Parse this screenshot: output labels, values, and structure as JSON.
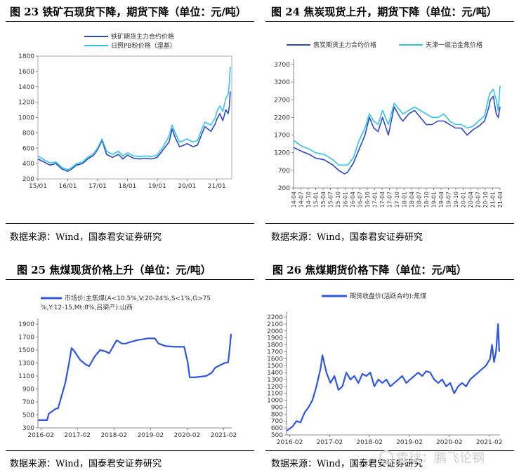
{
  "watermark": "雪球：鹏飞论钢",
  "colors": {
    "dark_blue": "#2a46c9",
    "light_blue": "#2ec4ec",
    "line_blue": "#2d57e3"
  },
  "panels": [
    {
      "title": "图 23  铁矿石现货下降，期货下降（单位：元/吨）",
      "source": "数据来源：Wind，国泰君安证券研究"
    },
    {
      "title": "图 24  焦炭现货上升，期货下降（单位：元/吨）",
      "source": "数据来源：Wind，国泰君安证券研究"
    },
    {
      "title": "图 25  焦煤现货价格上升（单位：元/吨）",
      "source": "数据来源：Wind，国泰君安证券研究"
    },
    {
      "title": "图 26  焦煤期货价格下降（单位：元/吨）",
      "source": "数据来源：Wind，国泰君安证券研究"
    }
  ],
  "chart_data": [
    {
      "type": "line",
      "title": "图 23  铁矿石现货下降，期货下降（单位：元/吨）",
      "ylim": [
        200,
        1800
      ],
      "yticks": [
        "1800",
        "1600",
        "1400",
        "1200",
        "1000",
        "800",
        "600",
        "400",
        "200"
      ],
      "xlim": [
        2015.0,
        2021.5
      ],
      "xticks": [
        "15/01",
        "16/01",
        "17/01",
        "18/01",
        "19/01",
        "20/01",
        "21/01"
      ],
      "legend_position": "top-left",
      "grid": false,
      "series": [
        {
          "name": "铁矿期货主力合约价格",
          "color": "#2a46c9",
          "x": [
            2015.0,
            2015.2,
            2015.4,
            2015.6,
            2015.8,
            2016.0,
            2016.1,
            2016.3,
            2016.5,
            2016.7,
            2016.85,
            2017.0,
            2017.15,
            2017.3,
            2017.5,
            2017.7,
            2017.85,
            2018.0,
            2018.2,
            2018.4,
            2018.6,
            2018.8,
            2019.0,
            2019.2,
            2019.4,
            2019.5,
            2019.6,
            2019.75,
            2019.9,
            2020.0,
            2020.2,
            2020.35,
            2020.5,
            2020.6,
            2020.8,
            2020.95,
            2021.0,
            2021.1,
            2021.2,
            2021.3,
            2021.38,
            2021.42,
            2021.45
          ],
          "y": [
            460,
            420,
            380,
            400,
            330,
            300,
            320,
            380,
            400,
            470,
            500,
            580,
            700,
            520,
            480,
            520,
            460,
            510,
            470,
            460,
            470,
            460,
            480,
            580,
            680,
            850,
            740,
            620,
            640,
            660,
            620,
            640,
            790,
            880,
            820,
            920,
            980,
            1050,
            960,
            1100,
            1050,
            1150,
            1340
          ]
        },
        {
          "name": "日照PB粉价格（湿基）",
          "color": "#2ec4ec",
          "x": [
            2015.0,
            2015.2,
            2015.4,
            2015.6,
            2015.8,
            2016.0,
            2016.1,
            2016.3,
            2016.5,
            2016.7,
            2016.85,
            2017.0,
            2017.15,
            2017.3,
            2017.5,
            2017.7,
            2017.85,
            2018.0,
            2018.2,
            2018.4,
            2018.6,
            2018.8,
            2019.0,
            2019.2,
            2019.4,
            2019.5,
            2019.6,
            2019.75,
            2019.9,
            2020.0,
            2020.2,
            2020.35,
            2020.5,
            2020.6,
            2020.8,
            2020.95,
            2021.0,
            2021.1,
            2021.2,
            2021.3,
            2021.38,
            2021.42,
            2021.45
          ],
          "y": [
            500,
            450,
            410,
            420,
            350,
            320,
            340,
            400,
            420,
            490,
            520,
            600,
            720,
            560,
            520,
            560,
            500,
            540,
            500,
            490,
            500,
            490,
            510,
            620,
            760,
            900,
            800,
            680,
            700,
            720,
            680,
            700,
            850,
            940,
            900,
            1000,
            1080,
            1150,
            1080,
            1250,
            1300,
            1450,
            1660
          ]
        }
      ]
    },
    {
      "type": "line",
      "title": "图 24  焦炭现货上升，期货下降（单位：元/吨）",
      "ylim": [
        200,
        3700
      ],
      "yticks": [
        "3700",
        "3200",
        "2700",
        "2200",
        "1700",
        "1200",
        "700",
        "200"
      ],
      "xlim": [
        2014.25,
        2021.33
      ],
      "xticks": [
        "14-04",
        "14-07",
        "14-10",
        "15-01",
        "15-04",
        "15-07",
        "15-10",
        "16-01",
        "16-04",
        "16-07",
        "16-10",
        "17-01",
        "17-04",
        "17-07",
        "17-10",
        "18-01",
        "18-04",
        "18-07",
        "18-10",
        "19-01",
        "19-04",
        "19-07",
        "19-10",
        "20-01",
        "20-04",
        "20-07",
        "20-10",
        "21-01",
        "21-04"
      ],
      "legend_position": "top",
      "grid": false,
      "series": [
        {
          "name": "焦炭期货主力合约价格",
          "color": "#2a46c9",
          "x": [
            2014.25,
            2014.5,
            2014.8,
            2015.0,
            2015.3,
            2015.6,
            2015.8,
            2016.0,
            2016.1,
            2016.3,
            2016.5,
            2016.7,
            2016.85,
            2017.0,
            2017.15,
            2017.3,
            2017.5,
            2017.7,
            2017.9,
            2018.0,
            2018.2,
            2018.4,
            2018.6,
            2018.8,
            2019.0,
            2019.2,
            2019.4,
            2019.6,
            2019.8,
            2020.0,
            2020.2,
            2020.4,
            2020.6,
            2020.8,
            2020.95,
            2021.0,
            2021.1,
            2021.2,
            2021.27,
            2021.33
          ],
          "y": [
            1350,
            1250,
            1150,
            1050,
            1000,
            850,
            700,
            600,
            650,
            900,
            1300,
            1700,
            2200,
            1900,
            1800,
            2200,
            1700,
            2500,
            2200,
            2100,
            2300,
            2400,
            2200,
            2000,
            2000,
            2100,
            2100,
            2000,
            1900,
            1900,
            1700,
            1850,
            1950,
            2100,
            2500,
            2700,
            2800,
            2300,
            2200,
            2500
          ]
        },
        {
          "name": "天津一级冶金焦价格",
          "color": "#2ec4ec",
          "x": [
            2014.25,
            2014.5,
            2014.8,
            2015.0,
            2015.3,
            2015.6,
            2015.8,
            2016.0,
            2016.1,
            2016.3,
            2016.5,
            2016.7,
            2016.85,
            2017.0,
            2017.15,
            2017.3,
            2017.5,
            2017.7,
            2017.9,
            2018.0,
            2018.2,
            2018.4,
            2018.6,
            2018.8,
            2019.0,
            2019.2,
            2019.4,
            2019.6,
            2019.8,
            2020.0,
            2020.2,
            2020.4,
            2020.6,
            2020.8,
            2020.95,
            2021.0,
            2021.1,
            2021.2,
            2021.27,
            2021.33
          ],
          "y": [
            1550,
            1400,
            1300,
            1200,
            1150,
            1000,
            850,
            850,
            850,
            1050,
            1550,
            1900,
            2300,
            2100,
            2000,
            2400,
            2000,
            2600,
            2400,
            2300,
            2400,
            2500,
            2400,
            2300,
            2200,
            2200,
            2300,
            2100,
            2000,
            2000,
            1900,
            1950,
            2100,
            2250,
            2800,
            2900,
            3000,
            2700,
            2400,
            3100
          ]
        }
      ]
    },
    {
      "type": "line",
      "title": "图 25  焦煤现货价格上升（单位：元/吨）",
      "ylim": [
        300,
        1900
      ],
      "yticks": [
        "1900",
        "1700",
        "1500",
        "1300",
        "1100",
        "900",
        "700",
        "500",
        "300"
      ],
      "xlim": [
        2016.0,
        2021.3
      ],
      "xticks": [
        "2016-02",
        "2017-02",
        "2018-02",
        "2019-02",
        "2020-02",
        "2021-02"
      ],
      "legend_position": "top",
      "grid": false,
      "series": [
        {
          "name": "市场价:主焦煤(A<10.5%,V:20-24%,S<1%,G>75%,Y:12-15,Mt:8%,吕梁产):山西",
          "color": "#2d57e3",
          "x": [
            2016.0,
            2016.25,
            2016.3,
            2016.5,
            2016.55,
            2016.75,
            2016.85,
            2016.92,
            2017.0,
            2017.15,
            2017.3,
            2017.4,
            2017.55,
            2017.7,
            2017.85,
            2017.95,
            2018.05,
            2018.15,
            2018.3,
            2018.4,
            2018.5,
            2018.7,
            2019.0,
            2019.2,
            2019.3,
            2019.5,
            2019.75,
            2020.0,
            2020.1,
            2020.15,
            2020.3,
            2020.6,
            2020.75,
            2020.85,
            2021.1,
            2021.2,
            2021.23,
            2021.28
          ],
          "y": [
            420,
            420,
            520,
            600,
            600,
            1000,
            1300,
            1530,
            1480,
            1350,
            1280,
            1250,
            1400,
            1500,
            1480,
            1450,
            1550,
            1650,
            1600,
            1600,
            1620,
            1650,
            1680,
            1680,
            1600,
            1560,
            1550,
            1550,
            1300,
            1080,
            1080,
            1100,
            1150,
            1230,
            1300,
            1310,
            1450,
            1750
          ]
        }
      ]
    },
    {
      "type": "line",
      "title": "图 26  焦煤期货价格下降（单位：元/吨）",
      "ylim": [
        500,
        2200
      ],
      "yticks": [
        "2200",
        "2100",
        "2000",
        "1900",
        "1800",
        "1700",
        "1600",
        "1500",
        "1400",
        "1300",
        "1200",
        "1100",
        "1000",
        "900",
        "800",
        "700",
        "600",
        "500"
      ],
      "xlim": [
        2016.0,
        2021.35
      ],
      "xticks": [
        "2016-02",
        "2017-02",
        "2018-02",
        "2019-02",
        "2020-02",
        "2021-02"
      ],
      "legend_position": "top",
      "grid": false,
      "series": [
        {
          "name": "期货收盘价(活跃合约):焦煤",
          "color": "#2d57e3",
          "x": [
            2016.0,
            2016.15,
            2016.25,
            2016.35,
            2016.45,
            2016.55,
            2016.65,
            2016.75,
            2016.85,
            2016.9,
            2017.0,
            2017.1,
            2017.2,
            2017.3,
            2017.4,
            2017.5,
            2017.6,
            2017.7,
            2017.8,
            2017.9,
            2018.0,
            2018.1,
            2018.2,
            2018.3,
            2018.4,
            2018.5,
            2018.6,
            2018.7,
            2018.8,
            2018.9,
            2019.0,
            2019.1,
            2019.2,
            2019.3,
            2019.4,
            2019.5,
            2019.6,
            2019.7,
            2019.8,
            2019.9,
            2020.0,
            2020.1,
            2020.2,
            2020.3,
            2020.4,
            2020.5,
            2020.6,
            2020.7,
            2020.8,
            2020.9,
            2021.0,
            2021.1,
            2021.15,
            2021.2,
            2021.25,
            2021.3,
            2021.33
          ],
          "y": [
            560,
            620,
            700,
            680,
            820,
            900,
            1000,
            1200,
            1450,
            1650,
            1400,
            1250,
            1350,
            1150,
            1200,
            1400,
            1300,
            1350,
            1250,
            1380,
            1350,
            1400,
            1200,
            1300,
            1250,
            1300,
            1200,
            1250,
            1300,
            1350,
            1250,
            1300,
            1350,
            1400,
            1350,
            1420,
            1400,
            1300,
            1250,
            1300,
            1200,
            1250,
            1100,
            1200,
            1250,
            1200,
            1300,
            1350,
            1400,
            1450,
            1500,
            1600,
            1800,
            1550,
            1700,
            2100,
            1700
          ]
        }
      ]
    }
  ]
}
